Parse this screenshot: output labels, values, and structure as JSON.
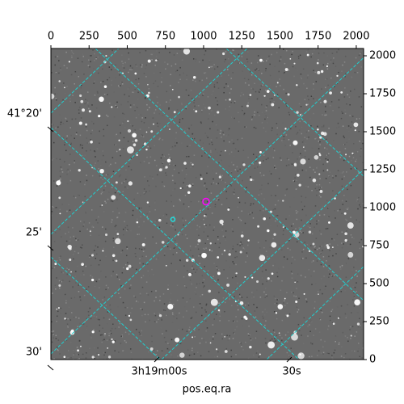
{
  "chart_data": {
    "type": "image",
    "xlabel": "pos.eq.ra",
    "xlim": [
      0,
      2048
    ],
    "ylim": [
      0,
      2048
    ],
    "xticks": [
      0,
      250,
      500,
      750,
      1000,
      1250,
      1500,
      1750,
      2000
    ],
    "yticks": [
      0,
      250,
      500,
      750,
      1000,
      1250,
      1500,
      1750,
      2000
    ],
    "world_y_labels": [
      "41°20'",
      "25'",
      "30'"
    ],
    "world_x_labels": [
      "3h19m00s",
      "30s"
    ],
    "markers": [
      {
        "x": 1016,
        "y": 1040,
        "color": "#ff00ff"
      },
      {
        "x": 799,
        "y": 923,
        "color": "#20e0e0"
      }
    ]
  }
}
